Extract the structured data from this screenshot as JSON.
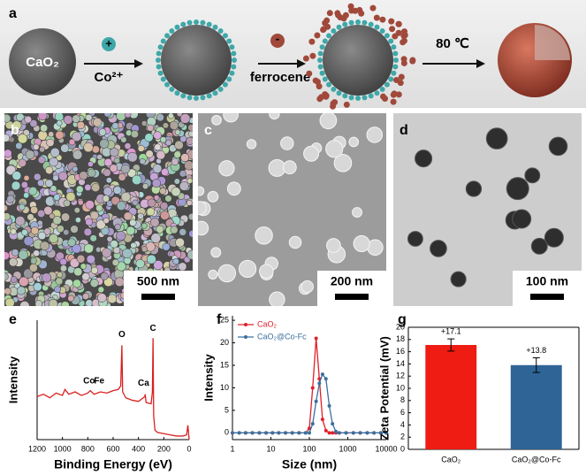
{
  "scheme": {
    "panel_label": "a",
    "core_label": "CaO₂",
    "step1_sign": "+",
    "step1_label": "Co²⁺",
    "step2_sign": "-",
    "step2_label": "ferrocene",
    "step3_label": "80 ℃"
  },
  "micrographs": [
    {
      "panel_label": "b",
      "scale_bar": "500 nm"
    },
    {
      "panel_label": "c",
      "scale_bar": "200 nm"
    },
    {
      "panel_label": "d",
      "scale_bar": "100 nm"
    }
  ],
  "chart_data": [
    {
      "type": "line",
      "panel_label": "e",
      "xlabel": "Binding Energy (eV)",
      "ylabel": "Intensity",
      "x": [
        1200,
        1150,
        1100,
        1050,
        1000,
        980,
        950,
        900,
        850,
        800,
        780,
        750,
        700,
        650,
        600,
        560,
        540,
        531,
        525,
        500,
        450,
        400,
        350,
        347,
        340,
        300,
        290,
        285,
        280,
        270,
        250,
        200,
        150,
        100,
        50,
        20,
        10,
        0
      ],
      "series": [
        {
          "color": "#d92020",
          "values": [
            36,
            38,
            35,
            39,
            37,
            42,
            38,
            40,
            37,
            39,
            41,
            38,
            40,
            39,
            41,
            42,
            45,
            79,
            40,
            35,
            33,
            32,
            36,
            38,
            31,
            30,
            40,
            85,
            20,
            8,
            6,
            5,
            4,
            3,
            3,
            4,
            12,
            0
          ]
        }
      ],
      "xlim": [
        1200,
        0
      ],
      "xticks": [
        1200,
        1000,
        800,
        600,
        400,
        200,
        0
      ],
      "ylim": [
        0,
        100
      ],
      "annotations": [
        {
          "text": "O",
          "x": 531,
          "y": 88
        },
        {
          "text": "C",
          "x": 285,
          "y": 93
        },
        {
          "text": "Co",
          "x": 790,
          "y": 49
        },
        {
          "text": "Fe",
          "x": 710,
          "y": 49
        },
        {
          "text": "Ca",
          "x": 360,
          "y": 47
        }
      ]
    },
    {
      "type": "line",
      "panel_label": "f",
      "xlabel": "Size (nm)",
      "ylabel": "Intensity",
      "log_x": true,
      "x": [
        1,
        1.5,
        2.2,
        3.3,
        5,
        7.5,
        11,
        16,
        24,
        36,
        54,
        80,
        100,
        122,
        150,
        182,
        220,
        270,
        330,
        400,
        490,
        600,
        900,
        1400,
        2100,
        3200,
        4800,
        7200,
        10000
      ],
      "series": [
        {
          "name": "CaO₂",
          "color": "#e0202a",
          "values": [
            0,
            0,
            0,
            0,
            0,
            0,
            0,
            0,
            0,
            0,
            0,
            0,
            1,
            10,
            21,
            12,
            3,
            0.5,
            0,
            0,
            0,
            0,
            0,
            0,
            0,
            0,
            0,
            0,
            0
          ]
        },
        {
          "name": "CaO₂@Co-Fc",
          "color": "#3a6f9f",
          "values": [
            0,
            0,
            0,
            0,
            0,
            0,
            0,
            0,
            0,
            0,
            0,
            0,
            0,
            2,
            7,
            11,
            13,
            12,
            6,
            2,
            0.3,
            0,
            0,
            0,
            0,
            0,
            0,
            0,
            0
          ]
        }
      ],
      "xlim": [
        1,
        10000
      ],
      "xticks": [
        1,
        10,
        100,
        1000,
        10000
      ],
      "ylim": [
        -1.5,
        26
      ],
      "yticks": [
        0,
        5,
        10,
        15,
        20,
        25
      ]
    },
    {
      "type": "bar",
      "panel_label": "g",
      "ylabel": "Zeta Potential (mV)",
      "categories": [
        "CaO₂",
        "CaO₂@Co-Fc"
      ],
      "values": [
        17.1,
        13.8
      ],
      "value_labels": [
        "+17.1",
        "+13.8"
      ],
      "errors": [
        1.0,
        1.2
      ],
      "colors": [
        "#ee1c12",
        "#2f6496"
      ],
      "ylim": [
        0,
        20
      ],
      "yticks": [
        0,
        2,
        4,
        6,
        8,
        10,
        12,
        14,
        16,
        18,
        20
      ]
    }
  ]
}
